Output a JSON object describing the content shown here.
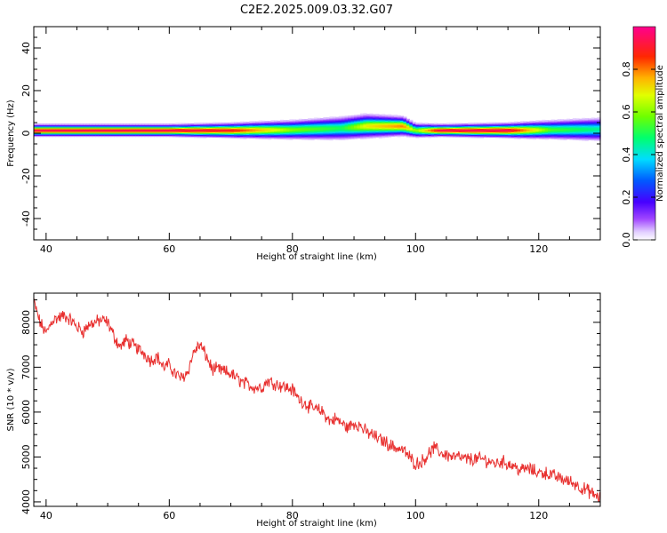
{
  "title": "C2E2.2025.009.03.32.G07",
  "chart_data": [
    {
      "type": "heatmap",
      "xlabel": "Height of straight line (km)",
      "ylabel": "Frequency (Hz)",
      "xlim": [
        38,
        130
      ],
      "ylim": [
        -50,
        50
      ],
      "x_ticks": [
        40,
        60,
        80,
        100,
        120
      ],
      "y_ticks": [
        -40,
        -20,
        0,
        20,
        40
      ],
      "x_tick_labels": [
        "40",
        "60",
        "80",
        "100",
        "120"
      ],
      "y_tick_labels": [
        "-40",
        "-20",
        "0",
        "20",
        "40"
      ],
      "colorbar": {
        "label": "Normalized spectral amplitude",
        "range": [
          0,
          1
        ],
        "ticks": [
          0,
          0.2,
          0.4,
          0.6,
          0.8
        ],
        "tick_labels": [
          "0.0",
          "0.2",
          "0.4",
          "0.6",
          "0.8"
        ]
      },
      "ridge": {
        "x": [
          38,
          60,
          70,
          80,
          88,
          92,
          98,
          100,
          104,
          115,
          122,
          130
        ],
        "freq": [
          1.5,
          1.5,
          1.5,
          1.8,
          2.5,
          3.5,
          3.5,
          1.5,
          1.5,
          1.5,
          1.8,
          2.0
        ],
        "halfwidth": [
          2.5,
          2.5,
          3,
          4,
          5,
          5,
          4,
          3,
          2.5,
          3,
          4,
          5
        ],
        "peak": [
          0.95,
          0.95,
          0.9,
          0.6,
          0.5,
          0.7,
          0.8,
          0.6,
          0.95,
          0.95,
          0.55,
          0.45
        ]
      }
    },
    {
      "type": "line",
      "xlabel": "Height of straight line (km)",
      "ylabel": "SNR (10 * v/v)",
      "xlim": [
        38,
        130
      ],
      "ylim": [
        3900,
        8650
      ],
      "x_ticks": [
        40,
        60,
        80,
        100,
        120
      ],
      "y_ticks": [
        4000,
        5000,
        6000,
        7000,
        8000
      ],
      "x_tick_labels": [
        "40",
        "60",
        "80",
        "100",
        "120"
      ],
      "y_tick_labels": [
        "4000",
        "5000",
        "6000",
        "7000",
        "8000"
      ],
      "series": [
        {
          "color": "#e8302f",
          "x": [
            38,
            39,
            40,
            41,
            42,
            43,
            44,
            45,
            46,
            47,
            48,
            49,
            50,
            51,
            52,
            53,
            54,
            55,
            56,
            57,
            58,
            59,
            60,
            61,
            62,
            63,
            64,
            65,
            66,
            67,
            68,
            69,
            70,
            71,
            72,
            73,
            74,
            75,
            76,
            77,
            78,
            79,
            80,
            81,
            82,
            83,
            84,
            85,
            86,
            87,
            88,
            89,
            90,
            91,
            92,
            93,
            94,
            95,
            96,
            97,
            98,
            99,
            100,
            101,
            102,
            103,
            104,
            105,
            106,
            107,
            108,
            109,
            110,
            111,
            112,
            113,
            114,
            115,
            116,
            117,
            118,
            119,
            120,
            121,
            122,
            123,
            124,
            125,
            126,
            127,
            128,
            129,
            130
          ],
          "values": [
            8450,
            8000,
            7750,
            8050,
            8100,
            8150,
            8050,
            7900,
            7800,
            7950,
            8000,
            8050,
            8000,
            7700,
            7450,
            7600,
            7500,
            7400,
            7300,
            7150,
            7250,
            7000,
            7050,
            6850,
            6750,
            6900,
            7350,
            7500,
            7250,
            6950,
            6950,
            6900,
            6850,
            6750,
            6650,
            6600,
            6550,
            6550,
            6700,
            6650,
            6600,
            6550,
            6500,
            6300,
            6200,
            6100,
            6050,
            6000,
            5800,
            5850,
            5750,
            5650,
            5750,
            5700,
            5550,
            5500,
            5400,
            5350,
            5250,
            5200,
            5150,
            5000,
            4850,
            4900,
            5050,
            5200,
            5100,
            5050,
            5000,
            5000,
            4950,
            4950,
            4950,
            4950,
            4900,
            4850,
            4900,
            4850,
            4800,
            4700,
            4750,
            4700,
            4650,
            4650,
            4600,
            4550,
            4500,
            4450,
            4400,
            4300,
            4250,
            4150,
            4100
          ]
        }
      ]
    }
  ]
}
